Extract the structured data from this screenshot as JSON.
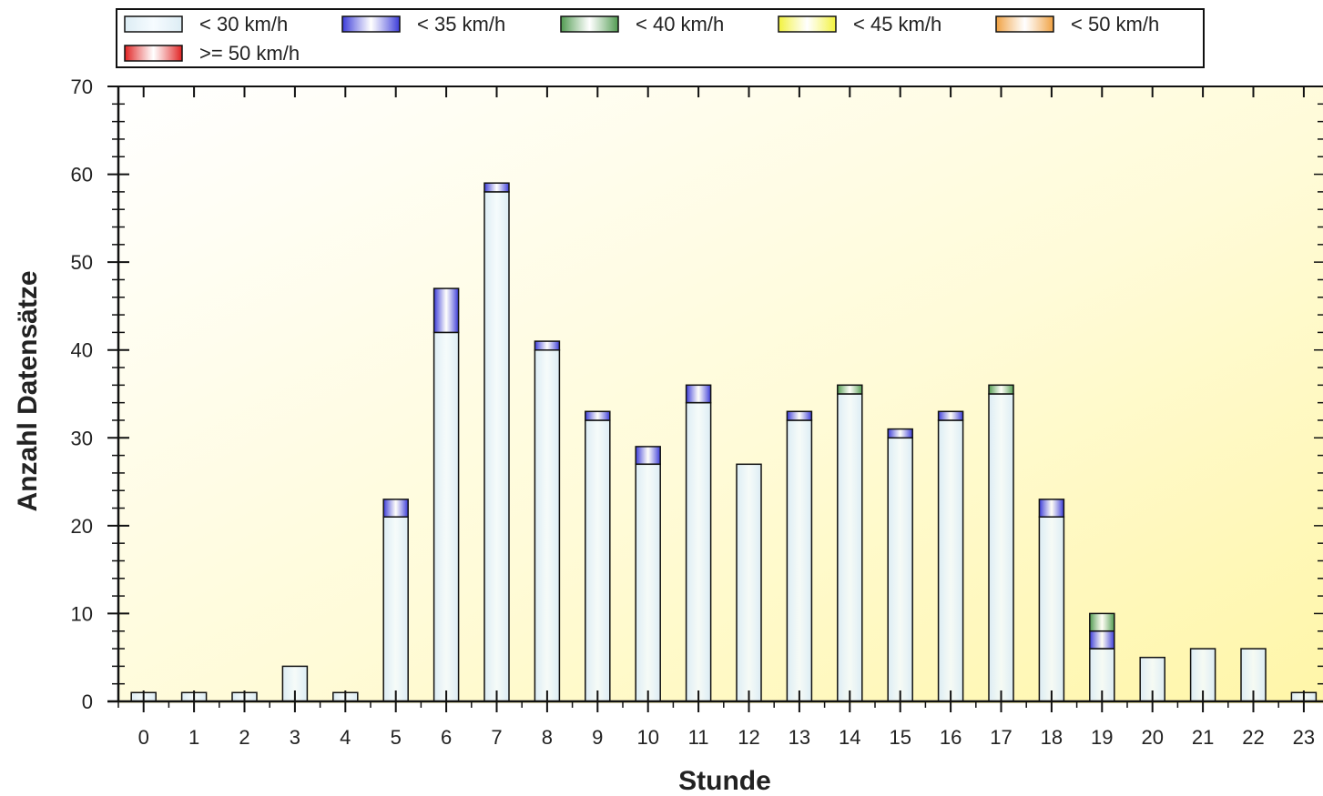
{
  "chart_data": {
    "type": "bar",
    "stacked": true,
    "title": "",
    "xlabel": "Stunde",
    "ylabel": "Anzahl Datensätze",
    "ylim": [
      0,
      70
    ],
    "yticks": [
      0,
      10,
      20,
      30,
      40,
      50,
      60,
      70
    ],
    "categories": [
      "0",
      "1",
      "2",
      "3",
      "4",
      "5",
      "6",
      "7",
      "8",
      "9",
      "10",
      "11",
      "12",
      "13",
      "14",
      "15",
      "16",
      "17",
      "18",
      "19",
      "20",
      "21",
      "22",
      "23"
    ],
    "legend_position": "top",
    "grid": false,
    "series": [
      {
        "name": "< 30 km/h",
        "color": "#dcecf4",
        "values": [
          1,
          1,
          1,
          4,
          1,
          21,
          42,
          58,
          40,
          32,
          27,
          34,
          27,
          32,
          35,
          30,
          32,
          35,
          21,
          6,
          5,
          6,
          6,
          1
        ]
      },
      {
        "name": "< 35 km/h",
        "color": "#3a3ad8",
        "values": [
          0,
          0,
          0,
          0,
          0,
          2,
          5,
          1,
          1,
          1,
          2,
          2,
          0,
          1,
          0,
          1,
          1,
          0,
          2,
          2,
          0,
          0,
          0,
          0
        ]
      },
      {
        "name": "< 40 km/h",
        "color": "#4f9a4f",
        "values": [
          0,
          0,
          0,
          0,
          0,
          0,
          0,
          0,
          0,
          0,
          0,
          0,
          0,
          0,
          1,
          0,
          0,
          1,
          0,
          2,
          0,
          0,
          0,
          0
        ]
      },
      {
        "name": "< 45 km/h",
        "color": "#f2f23a",
        "values": [
          0,
          0,
          0,
          0,
          0,
          0,
          0,
          0,
          0,
          0,
          0,
          0,
          0,
          0,
          0,
          0,
          0,
          0,
          0,
          0,
          0,
          0,
          0,
          0
        ]
      },
      {
        "name": "< 50 km/h",
        "color": "#f0a040",
        "values": [
          0,
          0,
          0,
          0,
          0,
          0,
          0,
          0,
          0,
          0,
          0,
          0,
          0,
          0,
          0,
          0,
          0,
          0,
          0,
          0,
          0,
          0,
          0,
          0
        ]
      },
      {
        "name": ">= 50 km/h",
        "color": "#e02020",
        "values": [
          0,
          0,
          0,
          0,
          0,
          0,
          0,
          0,
          0,
          0,
          0,
          0,
          0,
          0,
          0,
          0,
          0,
          0,
          0,
          0,
          0,
          0,
          0,
          0
        ]
      }
    ]
  }
}
